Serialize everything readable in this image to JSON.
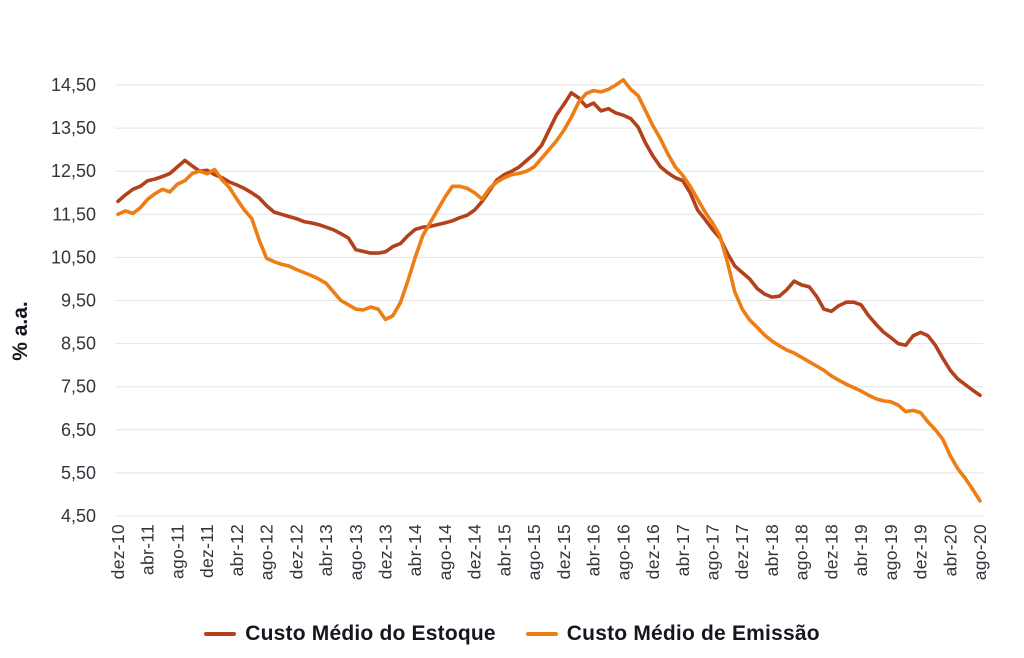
{
  "chart_data": {
    "type": "line",
    "title": "",
    "xlabel": "",
    "ylabel": "% a.a.",
    "grid": true,
    "legend_position": "bottom",
    "y_range": [
      4.5,
      14.5
    ],
    "y_ticks": [
      "14,50",
      "13,50",
      "12,50",
      "11,50",
      "10,50",
      "9,50",
      "8,50",
      "7,50",
      "6,50",
      "5,50",
      "4,50"
    ],
    "x_tick_every": 4,
    "x_tick_labels": [
      "dez-10",
      "abr-11",
      "ago-11",
      "dez-11",
      "abr-12",
      "ago-12",
      "dez-12",
      "abr-13",
      "ago-13",
      "dez-13",
      "abr-14",
      "ago-14",
      "dez-14",
      "abr-15",
      "ago-15",
      "dez-15",
      "abr-16",
      "ago-16",
      "dez-16",
      "abr-17",
      "ago-17",
      "dez-17",
      "abr-18",
      "ago-18",
      "dez-18",
      "abr-19",
      "ago-19",
      "dez-19",
      "abr-20",
      "ago-20"
    ],
    "x_frequency": "monthly",
    "series": [
      {
        "name": "Custo Médio do Estoque",
        "color": "#b3411c",
        "values": [
          11.8,
          11.95,
          12.08,
          12.15,
          12.28,
          12.32,
          12.38,
          12.45,
          12.6,
          12.75,
          12.62,
          12.5,
          12.52,
          12.42,
          12.35,
          12.25,
          12.18,
          12.1,
          12.0,
          11.88,
          11.7,
          11.55,
          11.5,
          11.45,
          11.4,
          11.33,
          11.3,
          11.26,
          11.2,
          11.14,
          11.05,
          10.95,
          10.68,
          10.64,
          10.6,
          10.6,
          10.63,
          10.75,
          10.82,
          11.0,
          11.15,
          11.2,
          11.22,
          11.26,
          11.3,
          11.35,
          11.42,
          11.48,
          11.6,
          11.8,
          12.05,
          12.3,
          12.42,
          12.5,
          12.6,
          12.75,
          12.9,
          13.1,
          13.45,
          13.8,
          14.05,
          14.32,
          14.2,
          14.0,
          14.08,
          13.9,
          13.95,
          13.85,
          13.8,
          13.72,
          13.52,
          13.15,
          12.85,
          12.6,
          12.46,
          12.35,
          12.28,
          12.0,
          11.6,
          11.38,
          11.15,
          10.95,
          10.6,
          10.3,
          10.15,
          10.0,
          9.78,
          9.65,
          9.58,
          9.6,
          9.75,
          9.95,
          9.86,
          9.82,
          9.6,
          9.3,
          9.25,
          9.38,
          9.46,
          9.46,
          9.4,
          9.15,
          8.95,
          8.77,
          8.64,
          8.5,
          8.46,
          8.68,
          8.76,
          8.68,
          8.46,
          8.16,
          7.88,
          7.68,
          7.55,
          7.42,
          7.3
        ]
      },
      {
        "name": "Custo Médio de Emissão",
        "color": "#ee7d14",
        "values": [
          11.5,
          11.58,
          11.52,
          11.65,
          11.85,
          11.98,
          12.08,
          12.02,
          12.2,
          12.28,
          12.45,
          12.5,
          12.44,
          12.54,
          12.3,
          12.12,
          11.85,
          11.6,
          11.4,
          10.9,
          10.48,
          10.4,
          10.34,
          10.3,
          10.22,
          10.15,
          10.08,
          10.0,
          9.9,
          9.7,
          9.5,
          9.4,
          9.3,
          9.28,
          9.35,
          9.3,
          9.06,
          9.15,
          9.45,
          9.95,
          10.5,
          11.0,
          11.3,
          11.6,
          11.9,
          12.15,
          12.15,
          12.1,
          12.0,
          11.85,
          12.1,
          12.25,
          12.35,
          12.42,
          12.45,
          12.5,
          12.6,
          12.8,
          13.0,
          13.2,
          13.45,
          13.75,
          14.1,
          14.3,
          14.37,
          14.34,
          14.4,
          14.5,
          14.62,
          14.4,
          14.25,
          13.9,
          13.55,
          13.25,
          12.9,
          12.6,
          12.4,
          12.15,
          11.85,
          11.55,
          11.3,
          11.0,
          10.4,
          9.7,
          9.3,
          9.05,
          8.88,
          8.7,
          8.56,
          8.45,
          8.35,
          8.28,
          8.18,
          8.08,
          7.98,
          7.88,
          7.75,
          7.65,
          7.56,
          7.48,
          7.4,
          7.3,
          7.22,
          7.17,
          7.15,
          7.07,
          6.92,
          6.95,
          6.9,
          6.68,
          6.5,
          6.28,
          5.9,
          5.6,
          5.38,
          5.12,
          4.85
        ]
      }
    ]
  }
}
